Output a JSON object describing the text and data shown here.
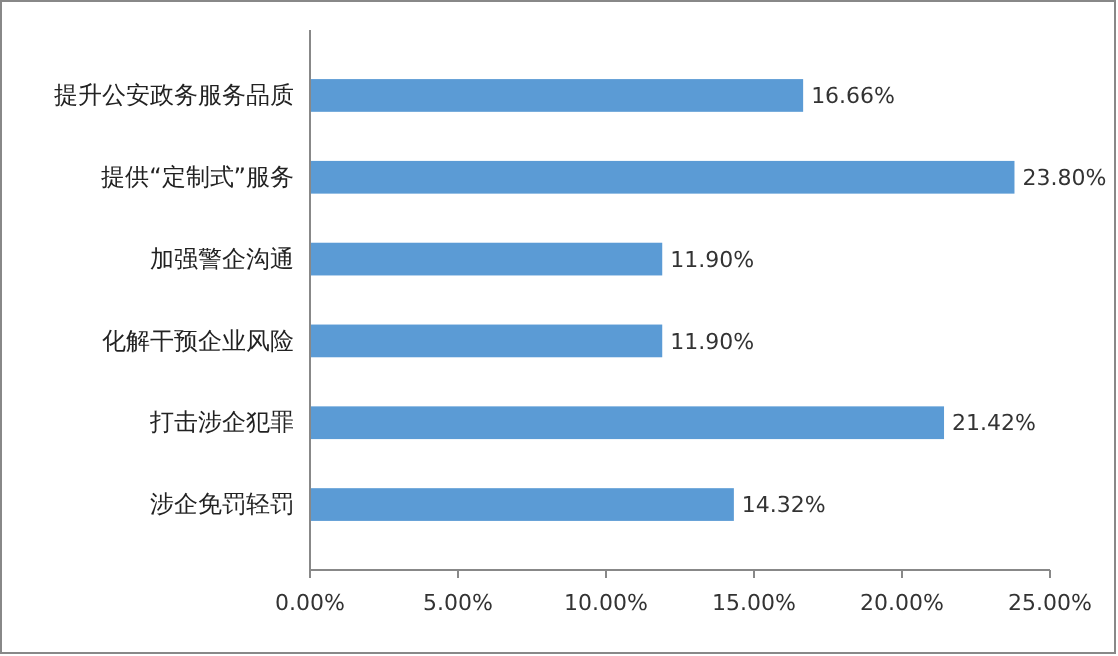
{
  "chart_data": {
    "type": "bar",
    "orientation": "horizontal",
    "categories": [
      "提升公安政务服务品质",
      "提供“定制式”服务",
      "加强警企沟通",
      "化解干预企业风险",
      "打击涉企犯罪",
      "涉企免罚轻罚"
    ],
    "values": [
      16.66,
      23.8,
      11.9,
      11.9,
      21.42,
      14.32
    ],
    "value_labels": [
      "16.66%",
      "23.80%",
      "11.90%",
      "11.90%",
      "21.42%",
      "14.32%"
    ],
    "color": "#5b9bd5",
    "xlim": [
      0,
      25
    ],
    "xticks": [
      {
        "value": 0,
        "label": "0.00%"
      },
      {
        "value": 5,
        "label": "5.00%"
      },
      {
        "value": 10,
        "label": "10.00%"
      },
      {
        "value": 15,
        "label": "15.00%"
      },
      {
        "value": 20,
        "label": "20.00%"
      },
      {
        "value": 25,
        "label": "25.00%"
      }
    ],
    "grid": false
  }
}
